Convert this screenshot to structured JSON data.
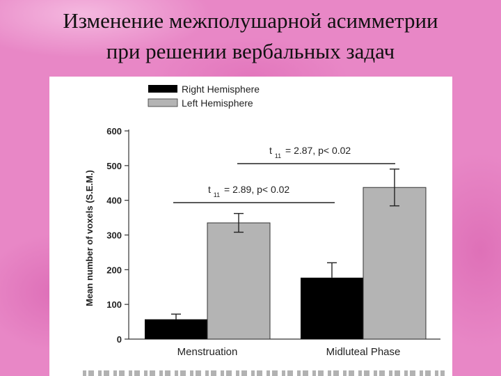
{
  "slide": {
    "title_line1": "Изменение межполушарной асимметрии",
    "title_line2": "при решении вербальных задач"
  },
  "chart_data": {
    "type": "bar",
    "categories": [
      "Menstruation",
      "Midluteal Phase"
    ],
    "series": [
      {
        "name": "Right Hemisphere",
        "values": [
          57,
          177
        ],
        "errors": [
          15,
          43
        ],
        "color": "#000000"
      },
      {
        "name": "Left Hemisphere",
        "values": [
          335,
          437
        ],
        "errors": [
          27,
          53
        ],
        "color": "#b4b4b4"
      }
    ],
    "ylabel": "Mean number of voxels (S.E.M.)",
    "xlabel": "",
    "ylim": [
      0,
      600
    ],
    "yticks": [
      0,
      100,
      200,
      300,
      400,
      500,
      600
    ],
    "grid": false,
    "legend": "top-left",
    "annotations": [
      {
        "text_main": "t",
        "text_sub": "11",
        "text_rest": "= 2.89, p< 0.02"
      },
      {
        "text_main": "t",
        "text_sub": "11",
        "text_rest": "= 2.87, p< 0.02"
      }
    ]
  }
}
